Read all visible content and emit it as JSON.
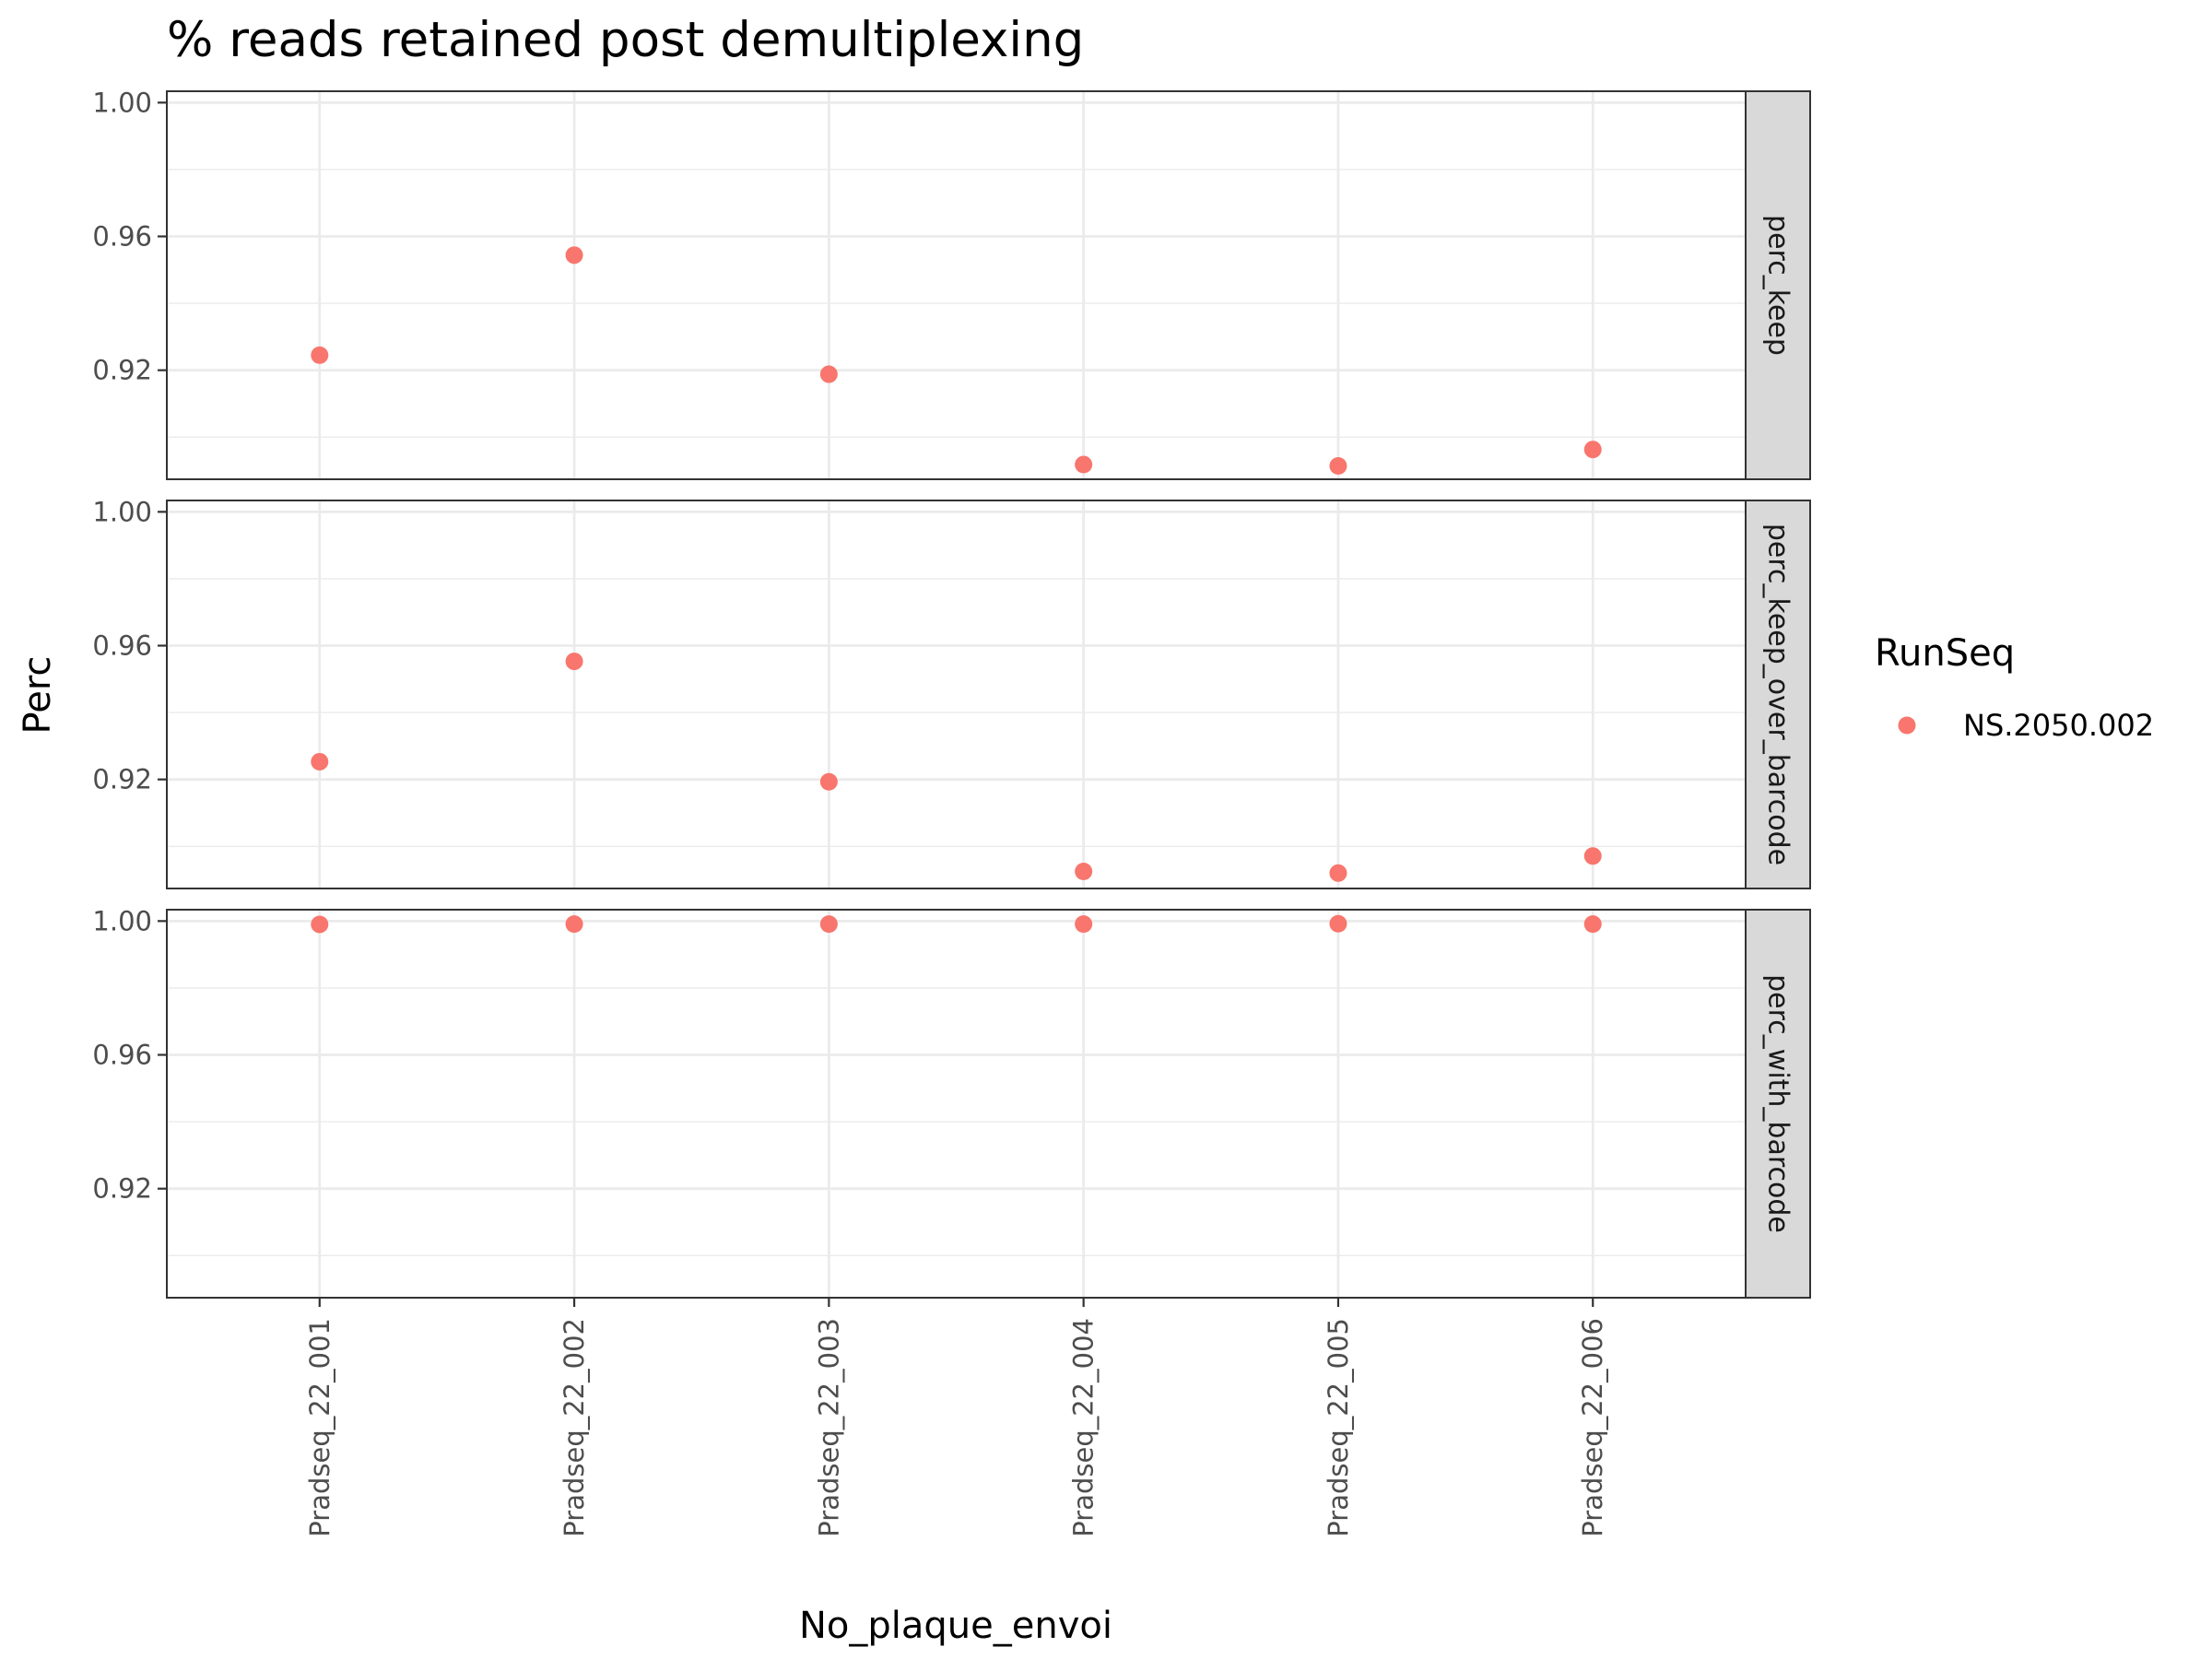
{
  "chart_data": {
    "type": "scatter",
    "title": "% reads retained post demultiplexing",
    "xlabel": "No_plaque_envoi",
    "ylabel": "Perc",
    "categories": [
      "Pradseq_22_001",
      "Pradseq_22_002",
      "Pradseq_22_003",
      "Pradseq_22_004",
      "Pradseq_22_005",
      "Pradseq_22_006"
    ],
    "ylim": [
      0.8874,
      1.0034
    ],
    "yticks": [
      0.92,
      0.96,
      1.0
    ],
    "ytick_labels": [
      "0.92",
      "0.96",
      "1.00"
    ],
    "grid": true,
    "legend": {
      "title": "RunSeq",
      "position": "right"
    },
    "series_color": "#f8766d",
    "facets": [
      {
        "label": "perc_keep",
        "series": [
          {
            "name": "NS.2050.002",
            "values": [
              0.9245,
              0.9544,
              0.9188,
              0.8918,
              0.8914,
              0.8963
            ]
          }
        ]
      },
      {
        "label": "perc_keep_over_barcode",
        "series": [
          {
            "name": "NS.2050.002",
            "values": [
              0.9253,
              0.9553,
              0.9193,
              0.8925,
              0.892,
              0.8971
            ]
          }
        ]
      },
      {
        "label": "perc_with_barcode",
        "series": [
          {
            "name": "NS.2050.002",
            "values": [
              0.999,
              0.9991,
              0.9991,
              0.9991,
              0.9992,
              0.9991
            ]
          }
        ]
      }
    ]
  }
}
